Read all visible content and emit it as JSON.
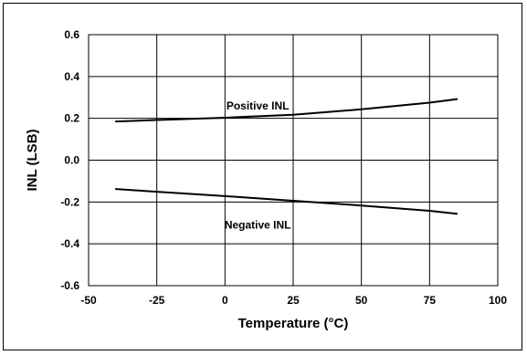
{
  "chart_data": {
    "type": "line",
    "title": "",
    "xlabel": "Temperature (°C)",
    "ylabel": "INL (LSB)",
    "xlim": [
      -50,
      100
    ],
    "ylim": [
      -0.6,
      0.6
    ],
    "xticks": [
      -50,
      -25,
      0,
      25,
      50,
      75,
      100
    ],
    "xtick_labels": [
      "-50",
      "-25",
      "0",
      "25",
      "50",
      "75",
      "100"
    ],
    "yticks": [
      -0.6,
      -0.4,
      -0.2,
      0.0,
      0.2,
      0.4,
      0.6
    ],
    "ytick_labels": [
      "-0.6",
      "-0.4",
      "-0.2",
      "0.0",
      "0.2",
      "0.4",
      "0.6"
    ],
    "grid": true,
    "legend": "none",
    "series": [
      {
        "name": "Positive INL",
        "color": "#000000",
        "x": [
          -40,
          -25,
          0,
          25,
          50,
          75,
          85
        ],
        "y": [
          0.185,
          0.192,
          0.203,
          0.217,
          0.243,
          0.275,
          0.292
        ]
      },
      {
        "name": "Negative INL",
        "color": "#000000",
        "x": [
          -40,
          -25,
          0,
          25,
          50,
          75,
          85
        ],
        "y": [
          -0.138,
          -0.151,
          -0.172,
          -0.194,
          -0.217,
          -0.242,
          -0.256
        ]
      }
    ],
    "annotations": [
      {
        "text": "Positive INL",
        "x": 12,
        "y": 0.26
      },
      {
        "text": "Negative INL",
        "x": 12,
        "y": -0.31
      }
    ]
  }
}
